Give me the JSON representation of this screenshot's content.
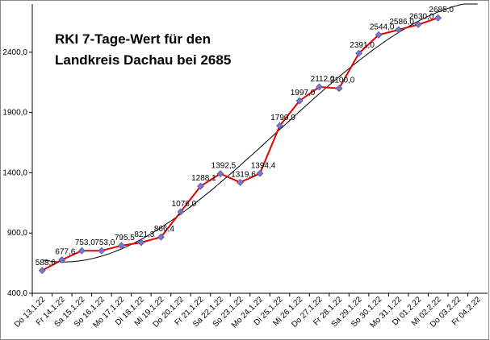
{
  "chart_data": {
    "type": "line",
    "title": [
      "RKI  7-Tage-Wert  für den",
      "Landkreis Dachau bei 2685"
    ],
    "categories": [
      "Do 13.1.22",
      "Fr 14.1.22",
      "Sa 15.1.22",
      "So 16.1.22",
      "Mo 17.1.22",
      "Di 18.1.22",
      "Mi 19.1.22",
      "Do 20.1.22",
      "Fr 21.1.22",
      "Sa 22.1.22",
      "So 23.1.22",
      "Mo 24.1.22",
      "Di 25.1.22",
      "Mi 26.1.22",
      "Do 27.1.22",
      "Fr 28.1.22",
      "Sa 29.1.22",
      "So 30.1.22",
      "Mo 31.1.22",
      "Di 01.2.22",
      "Mi 02.2.22",
      "Do 03.2.22",
      "Fr 04.2.22"
    ],
    "values": [
      588.6,
      677.6,
      753.0,
      753.0,
      795.5,
      821.3,
      866.4,
      1076.0,
      1288.1,
      1392.5,
      1319.6,
      1394.4,
      1790.0,
      1997.0,
      2112.0,
      2100.0,
      2391.0,
      2544.0,
      2586.0,
      2630.0,
      2685.0,
      null,
      null
    ],
    "value_labels": [
      "588,6",
      "677,6",
      "753,0",
      "753,0",
      "795,5",
      "821,3",
      "866,4",
      "1076,0",
      "1288,1",
      "1392,5",
      "1319,6",
      "1394,4",
      "1790,0",
      "1997,0",
      "2112,0",
      "2100,0",
      "2391,0",
      "2544,0",
      "2586,0",
      "2630,0",
      "2685,0",
      null,
      null
    ],
    "color": "#e00000",
    "marker_color": "#7878c8",
    "trendline": "polynomial",
    "ylim": [
      400,
      2800
    ],
    "yticks": [
      {
        "value": 400,
        "label": "400,0"
      },
      {
        "value": 900,
        "label": "900,0"
      },
      {
        "value": 1400,
        "label": "1400,0"
      },
      {
        "value": 1900,
        "label": "1900,0"
      },
      {
        "value": 2400,
        "label": "2400,0"
      }
    ],
    "grid": false
  }
}
